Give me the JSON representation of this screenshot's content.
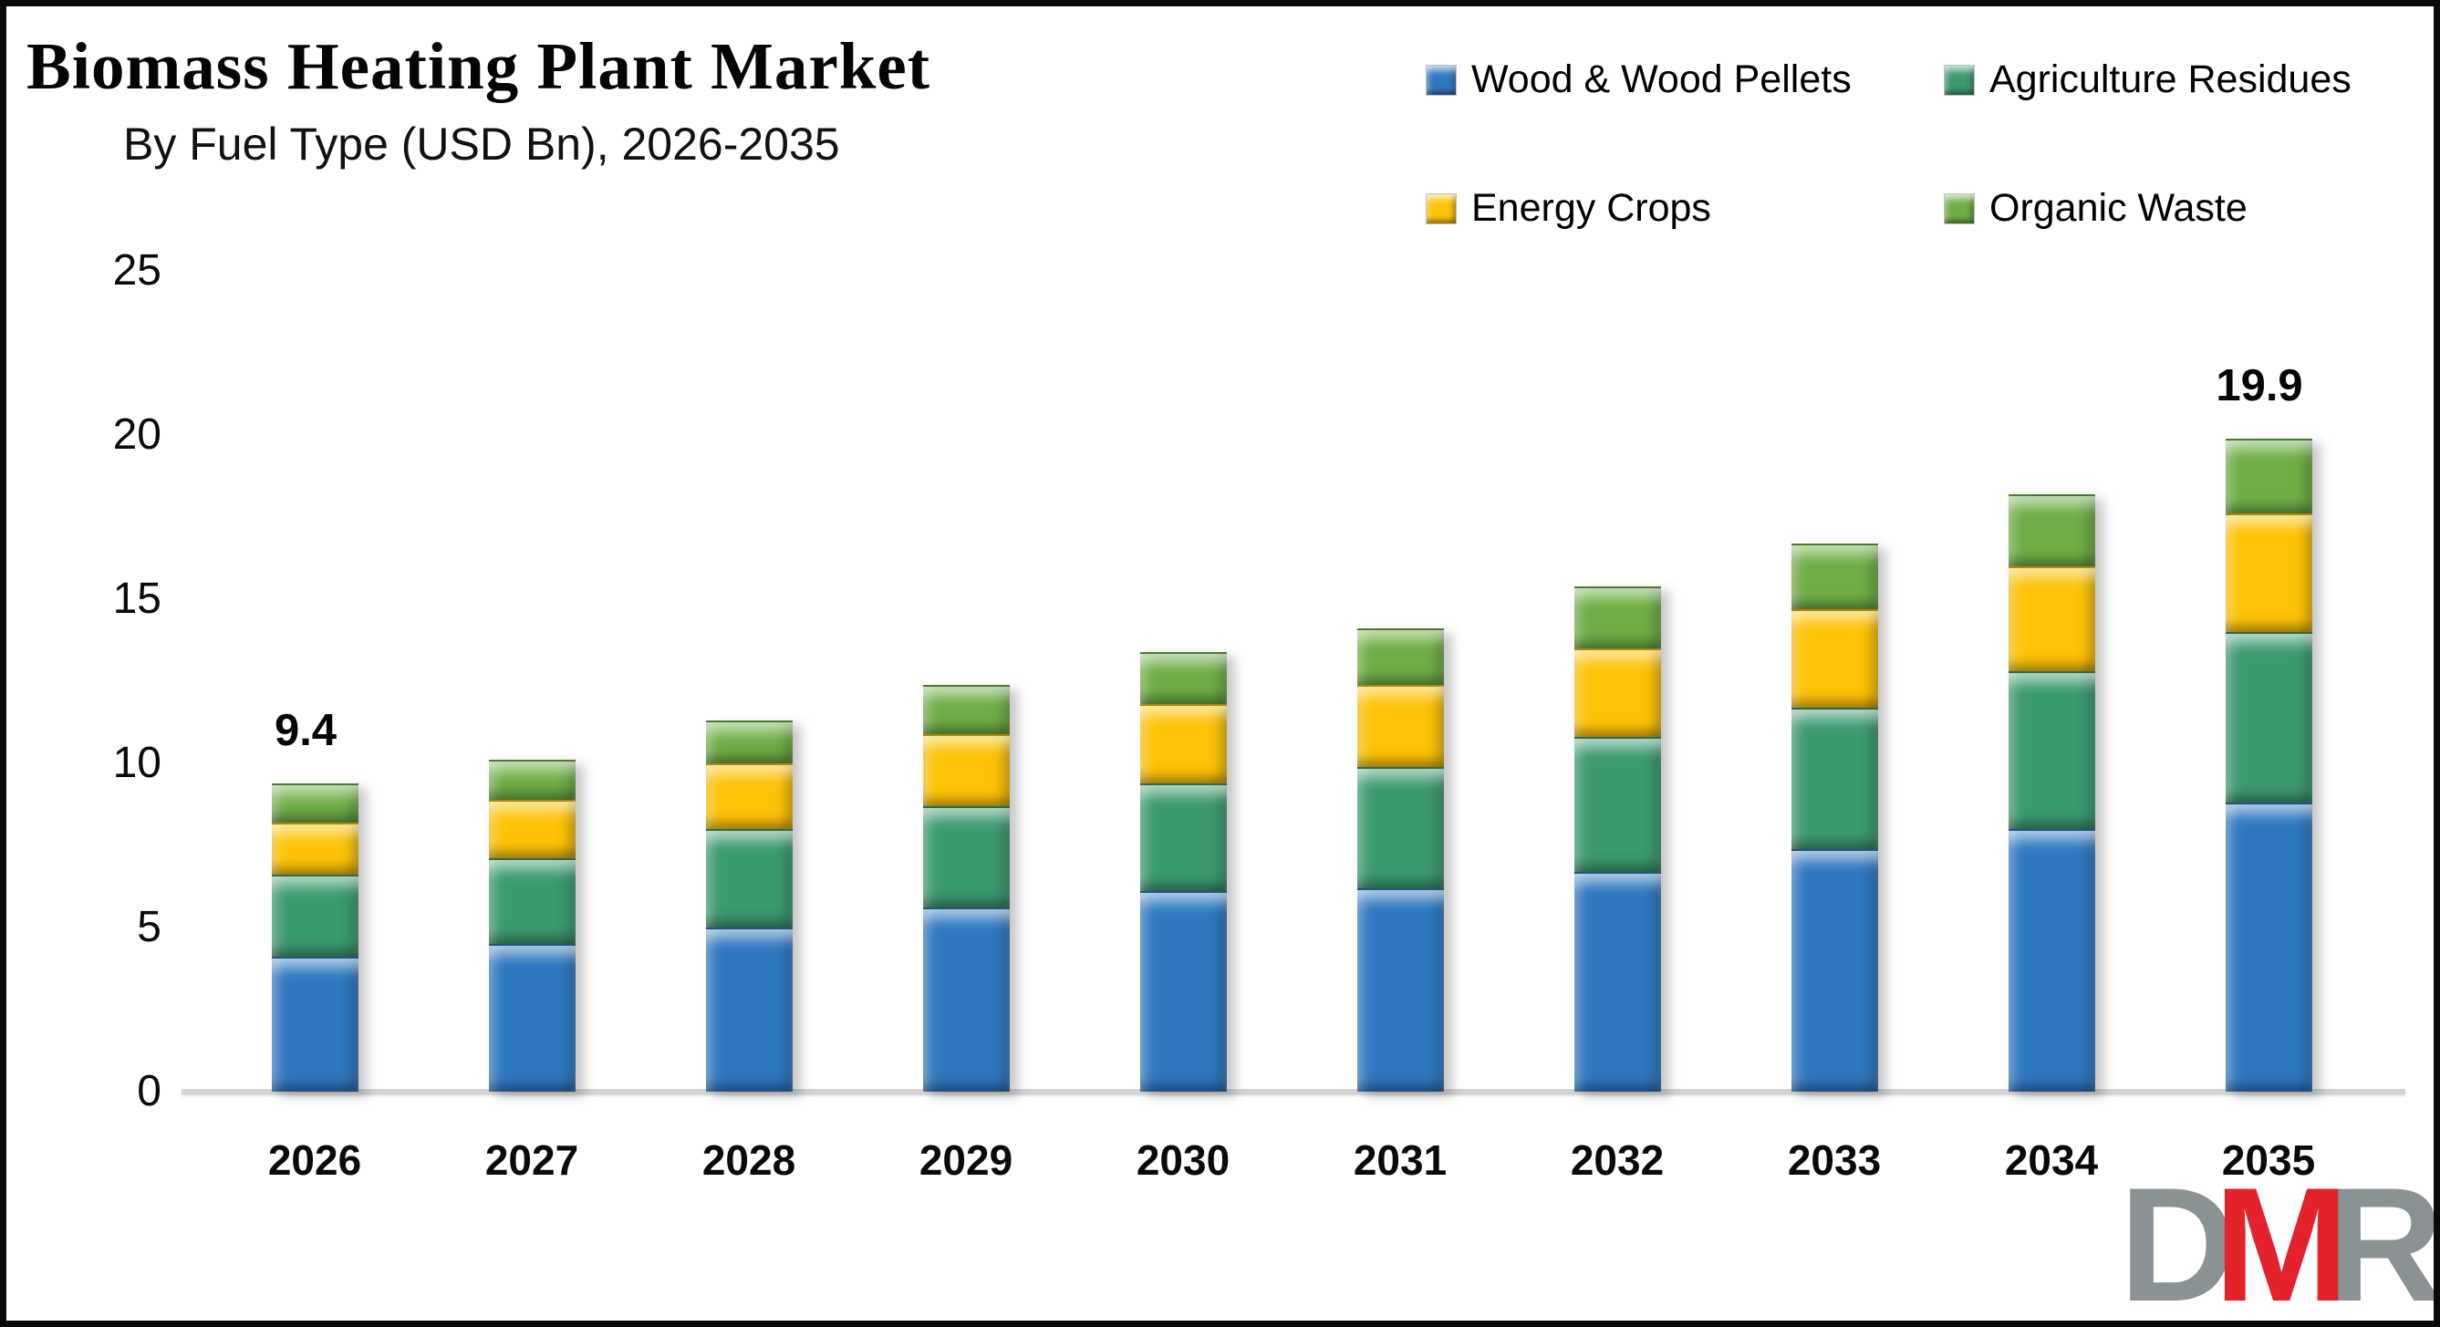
{
  "header": {
    "title": "Biomass Heating Plant Market",
    "subtitle": "By Fuel Type (USD Bn), 2026-2035"
  },
  "legend": [
    {
      "label": "Wood & Wood Pellets",
      "color": "#2E78C0"
    },
    {
      "label": "Agriculture Residues",
      "color": "#3B9A6E"
    },
    {
      "label": "Energy Crops",
      "color": "#FDC307"
    },
    {
      "label": "Organic Waste",
      "color": "#6EAE44"
    }
  ],
  "chart_data": {
    "type": "bar",
    "stacked": true,
    "title": "Biomass Heating Plant Market",
    "subtitle": "By Fuel Type (USD Bn), 2026-2035",
    "xlabel": "",
    "ylabel": "",
    "categories": [
      "2026",
      "2027",
      "2028",
      "2029",
      "2030",
      "2031",
      "2032",
      "2033",
      "2034",
      "2035"
    ],
    "series": [
      {
        "name": "Wood & Wood Pellets",
        "color": "#2E78C0",
        "values": [
          4.1,
          4.5,
          5.0,
          5.6,
          6.1,
          6.2,
          6.7,
          7.4,
          8.0,
          8.8
        ]
      },
      {
        "name": "Agriculture Residues",
        "color": "#3B9A6E",
        "values": [
          2.5,
          2.6,
          3.0,
          3.1,
          3.3,
          3.7,
          4.1,
          4.3,
          4.8,
          5.2
        ]
      },
      {
        "name": "Energy Crops",
        "color": "#FDC307",
        "values": [
          1.6,
          1.8,
          2.0,
          2.2,
          2.4,
          2.5,
          2.7,
          3.0,
          3.2,
          3.6
        ]
      },
      {
        "name": "Organic Waste",
        "color": "#6EAE44",
        "values": [
          1.2,
          1.2,
          1.3,
          1.5,
          1.6,
          1.7,
          1.9,
          2.0,
          2.2,
          2.3
        ]
      }
    ],
    "totals": [
      9.4,
      10.1,
      11.3,
      12.4,
      13.4,
      14.1,
      15.4,
      16.7,
      18.2,
      19.9
    ],
    "bar_labels": [
      "9.4",
      "",
      "",
      "",
      "",
      "",
      "",
      "",
      "",
      "19.9"
    ],
    "y_ticks": [
      0,
      5,
      10,
      15,
      20,
      25
    ],
    "ylim": [
      0,
      25
    ],
    "grid": false,
    "legend_position": "top-right"
  },
  "watermark": {
    "letters": [
      {
        "char": "D",
        "color": "#8B9294"
      },
      {
        "char": "M",
        "color": "#E4222B"
      },
      {
        "char": "R",
        "color": "#8B9294"
      }
    ]
  }
}
